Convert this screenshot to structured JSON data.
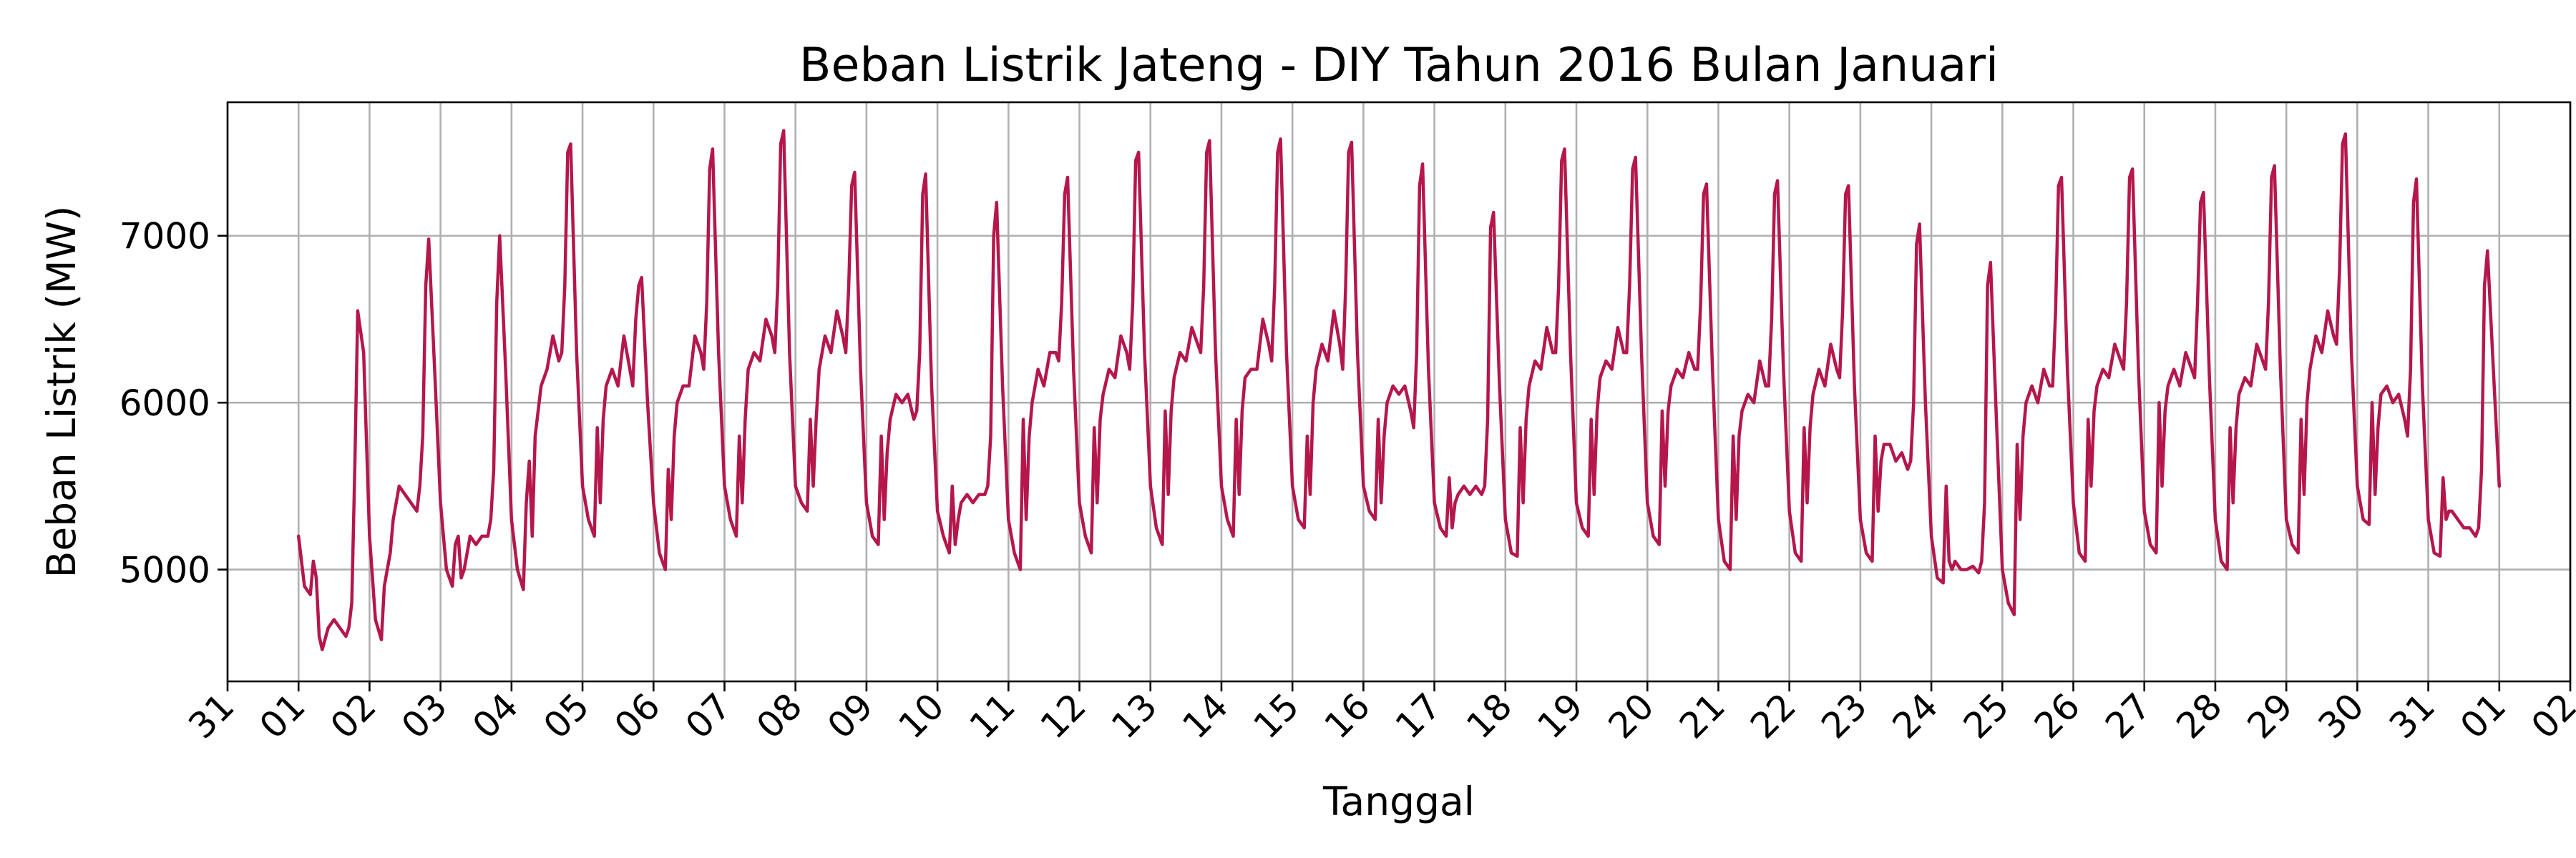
{
  "chart_data": {
    "type": "line",
    "title": "Beban Listrik Jateng - DIY Tahun 2016 Bulan Januari",
    "xlabel": "Tanggal",
    "ylabel": "Beban Listrik (MW)",
    "x_tick_labels": [
      "31",
      "01",
      "02",
      "03",
      "04",
      "05",
      "06",
      "07",
      "08",
      "09",
      "10",
      "11",
      "12",
      "13",
      "14",
      "15",
      "16",
      "17",
      "18",
      "19",
      "20",
      "21",
      "22",
      "23",
      "24",
      "25",
      "26",
      "27",
      "28",
      "29",
      "30",
      "31",
      "01",
      "02"
    ],
    "xlim": [
      "2015-12-31",
      "2016-02-02"
    ],
    "ylim": [
      4330,
      7800
    ],
    "y_ticks": [
      5000,
      6000,
      7000
    ],
    "grid": true,
    "legend": "none",
    "series": [
      {
        "color": "#b5174b",
        "x_start": "2016-01-01T00:00",
        "x_end": "2016-02-01T00:00",
        "sampling": "hourly",
        "daily_profile": {
          "hours": [
            0,
            2,
            4,
            5,
            6,
            7,
            8,
            10,
            12,
            14,
            16,
            17,
            18,
            19,
            20,
            22,
            24
          ],
          "note": "hourly load values listed per day in 'days'"
        },
        "days": [
          {
            "date": "2016-01-01",
            "values": [
              5200,
              4900,
              4850,
              5050,
              4950,
              4600,
              4520,
              4650,
              4700,
              4650,
              4600,
              4650,
              4800,
              5600,
              6550,
              6300,
              5500
            ]
          },
          {
            "date": "2016-01-02",
            "values": [
              5200,
              4700,
              4580,
              4900,
              5000,
              5100,
              5300,
              5500,
              5450,
              5400,
              5350,
              5500,
              5800,
              6700,
              6980,
              6200,
              5400
            ]
          },
          {
            "date": "2016-01-03",
            "values": [
              5400,
              5000,
              4900,
              5150,
              5200,
              4950,
              5000,
              5200,
              5150,
              5200,
              5200,
              5300,
              5600,
              6600,
              7000,
              6200,
              5400
            ]
          },
          {
            "date": "2016-01-04",
            "values": [
              5300,
              5000,
              4880,
              5400,
              5650,
              5200,
              5800,
              6100,
              6200,
              6400,
              6250,
              6300,
              6700,
              7500,
              7550,
              6300,
              5500
            ]
          },
          {
            "date": "2016-01-05",
            "values": [
              5500,
              5300,
              5200,
              5850,
              5400,
              5900,
              6100,
              6200,
              6100,
              6400,
              6200,
              6100,
              6500,
              6700,
              6750,
              6000,
              5400
            ]
          },
          {
            "date": "2016-01-06",
            "values": [
              5400,
              5100,
              5000,
              5600,
              5300,
              5800,
              6000,
              6100,
              6100,
              6400,
              6300,
              6200,
              6600,
              7400,
              7520,
              6300,
              5500
            ]
          },
          {
            "date": "2016-01-07",
            "values": [
              5500,
              5300,
              5200,
              5800,
              5400,
              5900,
              6200,
              6300,
              6250,
              6500,
              6400,
              6300,
              6700,
              7550,
              7630,
              6300,
              5500
            ]
          },
          {
            "date": "2016-01-08",
            "values": [
              5500,
              5400,
              5350,
              5900,
              5500,
              5900,
              6200,
              6400,
              6300,
              6550,
              6400,
              6300,
              6700,
              7300,
              7380,
              6200,
              5400
            ]
          },
          {
            "date": "2016-01-09",
            "values": [
              5400,
              5200,
              5150,
              5800,
              5300,
              5700,
              5900,
              6050,
              6000,
              6050,
              5900,
              5950,
              6300,
              7250,
              7370,
              6100,
              5400
            ]
          },
          {
            "date": "2016-01-10",
            "values": [
              5350,
              5200,
              5100,
              5500,
              5150,
              5300,
              5400,
              5450,
              5400,
              5450,
              5450,
              5500,
              5800,
              7000,
              7200,
              6100,
              5300
            ]
          },
          {
            "date": "2016-01-11",
            "values": [
              5300,
              5100,
              5000,
              5900,
              5300,
              5800,
              6000,
              6200,
              6100,
              6300,
              6300,
              6250,
              6600,
              7250,
              7350,
              6200,
              5400
            ]
          },
          {
            "date": "2016-01-12",
            "values": [
              5400,
              5200,
              5100,
              5850,
              5400,
              5900,
              6050,
              6200,
              6150,
              6400,
              6300,
              6200,
              6600,
              7450,
              7500,
              6300,
              5500
            ]
          },
          {
            "date": "2016-01-13",
            "values": [
              5500,
              5250,
              5150,
              5950,
              5450,
              5950,
              6150,
              6300,
              6250,
              6450,
              6350,
              6300,
              6700,
              7500,
              7570,
              6300,
              5500
            ]
          },
          {
            "date": "2016-01-14",
            "values": [
              5500,
              5300,
              5200,
              5900,
              5450,
              5950,
              6150,
              6200,
              6200,
              6500,
              6350,
              6250,
              6700,
              7500,
              7580,
              6300,
              5500
            ]
          },
          {
            "date": "2016-01-15",
            "values": [
              5500,
              5300,
              5250,
              5800,
              5450,
              6000,
              6200,
              6350,
              6250,
              6550,
              6350,
              6200,
              6700,
              7500,
              7560,
              6300,
              5500
            ]
          },
          {
            "date": "2016-01-16",
            "values": [
              5500,
              5350,
              5300,
              5900,
              5400,
              5800,
              6000,
              6100,
              6050,
              6100,
              5950,
              5850,
              6300,
              7300,
              7430,
              6200,
              5400
            ]
          },
          {
            "date": "2016-01-17",
            "values": [
              5400,
              5250,
              5200,
              5550,
              5250,
              5400,
              5450,
              5500,
              5450,
              5500,
              5450,
              5500,
              5900,
              7050,
              7140,
              6100,
              5300
            ]
          },
          {
            "date": "2016-01-18",
            "values": [
              5300,
              5100,
              5080,
              5850,
              5400,
              5900,
              6100,
              6250,
              6200,
              6450,
              6300,
              6300,
              6700,
              7450,
              7520,
              6300,
              5500
            ]
          },
          {
            "date": "2016-01-19",
            "values": [
              5400,
              5250,
              5200,
              5900,
              5450,
              5950,
              6150,
              6250,
              6200,
              6450,
              6300,
              6300,
              6700,
              7400,
              7470,
              6300,
              5500
            ]
          },
          {
            "date": "2016-01-20",
            "values": [
              5400,
              5200,
              5150,
              5950,
              5500,
              5950,
              6100,
              6200,
              6150,
              6300,
              6200,
              6200,
              6600,
              7250,
              7310,
              6200,
              5400
            ]
          },
          {
            "date": "2016-01-21",
            "values": [
              5300,
              5050,
              5000,
              5800,
              5300,
              5800,
              5950,
              6050,
              6000,
              6250,
              6100,
              6100,
              6500,
              7250,
              7330,
              6200,
              5400
            ]
          },
          {
            "date": "2016-01-22",
            "values": [
              5350,
              5100,
              5050,
              5850,
              5400,
              5850,
              6050,
              6200,
              6100,
              6350,
              6200,
              6150,
              6550,
              7250,
              7300,
              6100,
              5400
            ]
          },
          {
            "date": "2016-01-23",
            "values": [
              5300,
              5100,
              5050,
              5800,
              5350,
              5650,
              5750,
              5750,
              5650,
              5700,
              5600,
              5650,
              6000,
              6950,
              7070,
              6000,
              5300
            ]
          },
          {
            "date": "2016-01-24",
            "values": [
              5200,
              4950,
              4920,
              5500,
              5050,
              5000,
              5050,
              5000,
              5000,
              5020,
              4980,
              5050,
              5400,
              6700,
              6840,
              5900,
              5100
            ]
          },
          {
            "date": "2016-01-25",
            "values": [
              5000,
              4800,
              4730,
              5750,
              5300,
              5800,
              6000,
              6100,
              6000,
              6200,
              6100,
              6100,
              6550,
              7300,
              7350,
              6200,
              5400
            ]
          },
          {
            "date": "2016-01-26",
            "values": [
              5400,
              5100,
              5050,
              5900,
              5500,
              5950,
              6100,
              6200,
              6150,
              6350,
              6250,
              6200,
              6600,
              7350,
              7400,
              6200,
              5400
            ]
          },
          {
            "date": "2016-01-27",
            "values": [
              5350,
              5150,
              5100,
              6000,
              5500,
              5950,
              6100,
              6200,
              6100,
              6300,
              6200,
              6150,
              6600,
              7200,
              7260,
              6150,
              5400
            ]
          },
          {
            "date": "2016-01-28",
            "values": [
              5300,
              5050,
              5000,
              5850,
              5400,
              5850,
              6050,
              6150,
              6100,
              6350,
              6250,
              6200,
              6600,
              7350,
              7420,
              6200,
              5400
            ]
          },
          {
            "date": "2016-01-29",
            "values": [
              5300,
              5150,
              5100,
              5900,
              5450,
              6000,
              6200,
              6400,
              6300,
              6550,
              6400,
              6350,
              6800,
              7550,
              7610,
              6300,
              5500
            ]
          },
          {
            "date": "2016-01-30",
            "values": [
              5500,
              5300,
              5270,
              6000,
              5450,
              5850,
              6050,
              6100,
              6000,
              6050,
              5900,
              5800,
              6200,
              7200,
              7340,
              6100,
              5400
            ]
          },
          {
            "date": "2016-01-31",
            "values": [
              5300,
              5100,
              5080,
              5550,
              5300,
              5350,
              5350,
              5300,
              5250,
              5250,
              5200,
              5250,
              5600,
              6700,
              6910,
              6200,
              5500
            ]
          }
        ]
      }
    ]
  }
}
